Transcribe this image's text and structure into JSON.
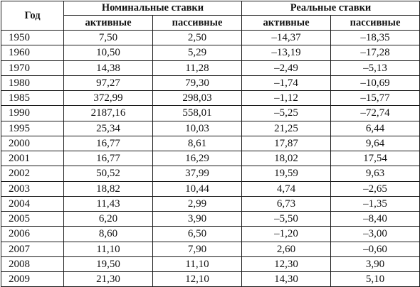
{
  "table": {
    "year_header": "Год",
    "group_headers": [
      "Номинальные ставки",
      "Реальные ставки"
    ],
    "sub_headers": [
      "активные",
      "пассивные",
      "активные",
      "пассивные"
    ],
    "rows": [
      [
        "1950",
        "7,50",
        "2,50",
        "–14,37",
        "–18,35"
      ],
      [
        "1960",
        "10,50",
        "5,29",
        "–13,19",
        "–17,28"
      ],
      [
        "1970",
        "14,38",
        "11,28",
        "–2,49",
        "–5,13"
      ],
      [
        "1980",
        "97,27",
        "79,30",
        "–1,74",
        "–10,69"
      ],
      [
        "1985",
        "372,99",
        "298,03",
        "–1,12",
        "–15,77"
      ],
      [
        "1990",
        "2187,16",
        "558,01",
        "–5,25",
        "–72,74"
      ],
      [
        "1995",
        "25,34",
        "10,03",
        "21,25",
        "6,44"
      ],
      [
        "2000",
        "16,77",
        "8,61",
        "17,87",
        "9,64"
      ],
      [
        "2001",
        "16,77",
        "16,29",
        "18,02",
        "17,54"
      ],
      [
        "2002",
        "50,52",
        "37,99",
        "19,59",
        "9,63"
      ],
      [
        "2003",
        "18,82",
        "10,44",
        "4,74",
        "–2,65"
      ],
      [
        "2004",
        "11,43",
        "2,99",
        "6,73",
        "–1,35"
      ],
      [
        "2005",
        "6,20",
        "3,90",
        "–5,50",
        "–8,40"
      ],
      [
        "2006",
        "8,60",
        "6,50",
        "–1,20",
        "–3,00"
      ],
      [
        "2007",
        "11,10",
        "7,90",
        "2,60",
        "–0,60"
      ],
      [
        "2008",
        "19,50",
        "11,10",
        "12,30",
        "3,90"
      ],
      [
        "2009",
        "21,30",
        "12,10",
        "14,30",
        "5,10"
      ]
    ]
  }
}
